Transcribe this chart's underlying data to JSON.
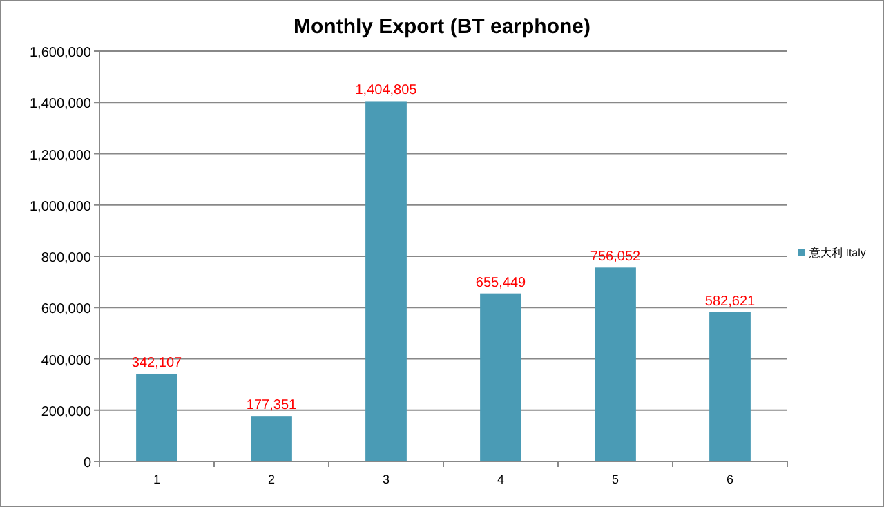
{
  "chart_data": {
    "type": "bar",
    "title": "Monthly Export (BT earphone)",
    "categories": [
      "1",
      "2",
      "3",
      "4",
      "5",
      "6"
    ],
    "series": [
      {
        "name": "意大利 Italy",
        "color": "#4a9bb5",
        "values": [
          342107,
          177351,
          1404805,
          655449,
          756052,
          582621
        ],
        "value_labels": [
          "342,107",
          "177,351",
          "1,404,805",
          "655,449",
          "756,052",
          "582,621"
        ]
      }
    ],
    "ylim": [
      0,
      1600000
    ],
    "yticks": [
      {
        "value": 0,
        "label": "0"
      },
      {
        "value": 200000,
        "label": "200,000"
      },
      {
        "value": 400000,
        "label": "400,000"
      },
      {
        "value": 600000,
        "label": "600,000"
      },
      {
        "value": 800000,
        "label": "800,000"
      },
      {
        "value": 1000000,
        "label": "1,000,000"
      },
      {
        "value": 1200000,
        "label": "1,200,000"
      },
      {
        "value": 1400000,
        "label": "1,400,000"
      },
      {
        "value": 1600000,
        "label": "1,600,000"
      }
    ],
    "grid": "y",
    "legend": "right"
  }
}
